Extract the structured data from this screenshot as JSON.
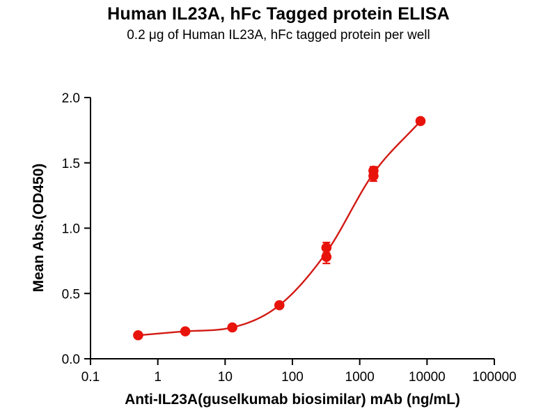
{
  "chart_data": {
    "type": "scatter",
    "title": "Human IL23A, hFc Tagged protein ELISA",
    "subtitle": "0.2 μg of Human IL23A, hFc tagged protein per well",
    "xlabel": "Anti-IL23A(guselkumab biosimilar) mAb (ng/mL)",
    "ylabel": "Mean Abs.(OD450)",
    "x_scale": "log",
    "xlim": [
      0.1,
      100000
    ],
    "ylim": [
      0.0,
      2.0
    ],
    "x_ticks": [
      0.1,
      1,
      10,
      100,
      1000,
      10000,
      100000
    ],
    "y_ticks": [
      0.0,
      0.5,
      1.0,
      1.5,
      2.0
    ],
    "grid": false,
    "legend": "none",
    "marker_color": "#e8140c",
    "curve_color": "#d21a14",
    "points": [
      {
        "x": 0.51,
        "y": 0.18,
        "err": 0.01
      },
      {
        "x": 2.56,
        "y": 0.21,
        "err": 0.01
      },
      {
        "x": 12.8,
        "y": 0.24,
        "err": 0.01
      },
      {
        "x": 64,
        "y": 0.41,
        "err": 0.015
      },
      {
        "x": 320,
        "y": 0.78,
        "err": 0.05
      },
      {
        "x": 320,
        "y": 0.85,
        "err": 0.04
      },
      {
        "x": 1600,
        "y": 1.4,
        "err": 0.04
      },
      {
        "x": 1600,
        "y": 1.44,
        "err": 0.03
      },
      {
        "x": 8000,
        "y": 1.82,
        "err": 0.02
      }
    ],
    "curve_fit": "sigmoidal dose-response through point means"
  }
}
